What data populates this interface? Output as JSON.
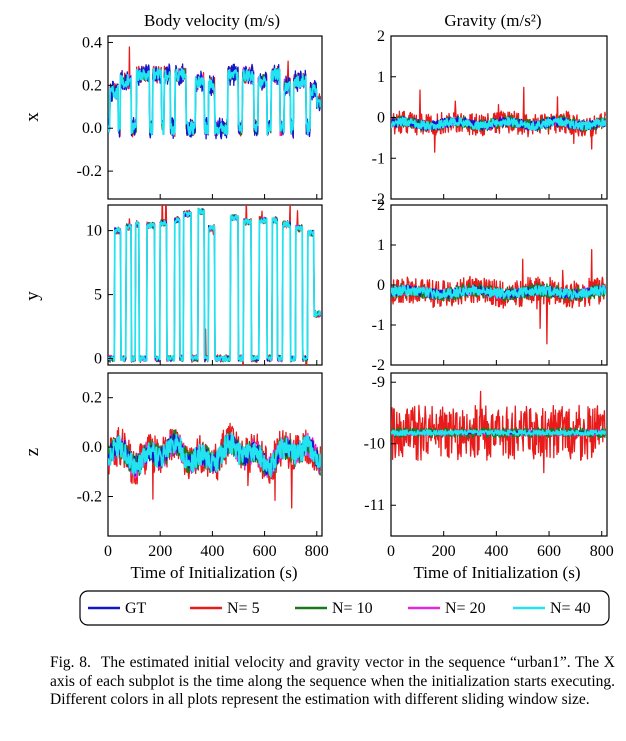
{
  "figure": {
    "column_titles": [
      "Body velocity (m/s)",
      "Gravity (m/s²)"
    ],
    "row_labels": [
      "x",
      "y",
      "z"
    ],
    "xlabel": "Time of Initialization (s)",
    "legend": [
      {
        "label": "GT",
        "color": "#1414cc"
      },
      {
        "label": "N= 5",
        "color": "#e81a1a"
      },
      {
        "label": "N= 10",
        "color": "#1a7a1a"
      },
      {
        "label": "N= 20",
        "color": "#e028e0"
      },
      {
        "label": "N= 40",
        "color": "#22e4f0"
      }
    ]
  },
  "caption": {
    "label": "Fig. 8.",
    "text": "The estimated initial velocity and gravity vector in the sequence “urban1”. The X axis of each subplot is the time along the sequence when the initialization starts executing. Different colors in all plots represent the estimation with different sliding window size."
  },
  "chart_data": [
    {
      "type": "line",
      "panel": "velocity-x",
      "ylabel": "x",
      "xlim": [
        0,
        820
      ],
      "ylim": [
        -0.33,
        0.43
      ],
      "xticks": [
        0,
        200,
        400,
        600,
        800
      ],
      "yticks": [
        0.4,
        0.2,
        0.0,
        -0.2
      ],
      "ytick_labels": [
        "0.4",
        "0.2",
        "0.0",
        "-0.2"
      ],
      "series": [
        {
          "name": "GT"
        },
        {
          "name": "N= 5"
        },
        {
          "name": "N= 10"
        },
        {
          "name": "N= 20"
        },
        {
          "name": "N= 40"
        }
      ]
    },
    {
      "type": "line",
      "panel": "velocity-y",
      "ylabel": "y",
      "xlim": [
        0,
        820
      ],
      "ylim": [
        -0.5,
        12
      ],
      "xticks": [
        0,
        200,
        400,
        600,
        800
      ],
      "yticks": [
        10,
        5,
        0
      ],
      "ytick_labels": [
        "10",
        "5",
        "0"
      ],
      "series": [
        {
          "name": "GT"
        },
        {
          "name": "N= 5"
        },
        {
          "name": "N= 10"
        },
        {
          "name": "N= 20"
        },
        {
          "name": "N= 40"
        }
      ]
    },
    {
      "type": "line",
      "panel": "velocity-z",
      "ylabel": "z",
      "xlim": [
        0,
        820
      ],
      "ylim": [
        -0.36,
        0.3
      ],
      "xticks": [
        0,
        200,
        400,
        600,
        800
      ],
      "xtick_labels": [
        "0",
        "200",
        "400",
        "600",
        "800"
      ],
      "yticks": [
        0.2,
        0.0,
        -0.2
      ],
      "ytick_labels": [
        "0.2",
        "0.0",
        "-0.2"
      ],
      "xlabel": "Time of Initialization (s)",
      "series": [
        {
          "name": "GT"
        },
        {
          "name": "N= 5"
        },
        {
          "name": "N= 10"
        },
        {
          "name": "N= 20"
        },
        {
          "name": "N= 40"
        }
      ]
    },
    {
      "type": "line",
      "panel": "gravity-x",
      "xlim": [
        0,
        820
      ],
      "ylim": [
        -2,
        2
      ],
      "xticks": [
        0,
        200,
        400,
        600,
        800
      ],
      "yticks": [
        2,
        1,
        0,
        -1,
        -2
      ],
      "ytick_labels": [
        "2",
        "1",
        "0",
        "-1",
        "-2"
      ],
      "series": [
        {
          "name": "GT"
        },
        {
          "name": "N= 5"
        },
        {
          "name": "N= 10"
        },
        {
          "name": "N= 20"
        },
        {
          "name": "N= 40"
        }
      ]
    },
    {
      "type": "line",
      "panel": "gravity-y",
      "xlim": [
        0,
        820
      ],
      "ylim": [
        -2,
        2
      ],
      "xticks": [
        0,
        200,
        400,
        600,
        800
      ],
      "yticks": [
        2,
        1,
        0,
        -1,
        -2
      ],
      "ytick_labels": [
        "2",
        "1",
        "0",
        "-1",
        "-2"
      ],
      "series": [
        {
          "name": "GT"
        },
        {
          "name": "N= 5"
        },
        {
          "name": "N= 10"
        },
        {
          "name": "N= 20"
        },
        {
          "name": "N= 40"
        }
      ]
    },
    {
      "type": "line",
      "panel": "gravity-z",
      "xlim": [
        0,
        820
      ],
      "ylim": [
        -11.5,
        -8.85
      ],
      "xticks": [
        0,
        200,
        400,
        600,
        800
      ],
      "xtick_labels": [
        "0",
        "200",
        "400",
        "600",
        "800"
      ],
      "yticks": [
        -9,
        -10,
        -11
      ],
      "ytick_labels": [
        "-9",
        "-10",
        "-11"
      ],
      "xlabel": "Time of Initialization (s)",
      "series": [
        {
          "name": "GT"
        },
        {
          "name": "N= 5"
        },
        {
          "name": "N= 10"
        },
        {
          "name": "N= 20"
        },
        {
          "name": "N= 40"
        }
      ]
    }
  ]
}
